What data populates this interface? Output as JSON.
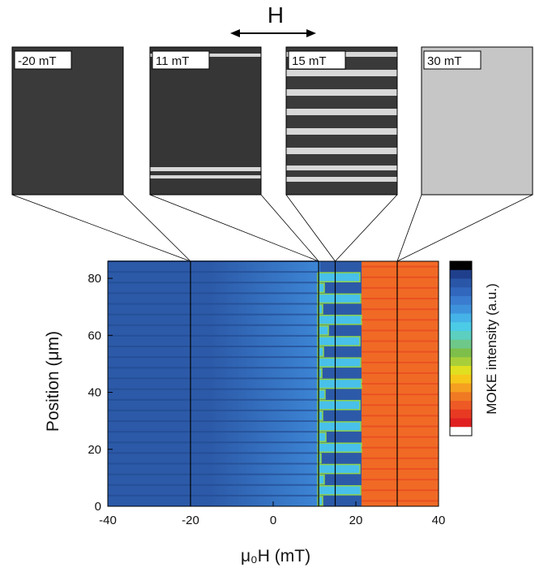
{
  "chart_data": {
    "type": "heatmap",
    "field_label": "H",
    "xlabel": "μ₀H (mT)",
    "ylabel": "Position (μm)",
    "colorbar_label": "MOKE intensity (a.u.)",
    "xlim": [
      -40,
      40
    ],
    "xticks": [
      -40,
      -20,
      0,
      20,
      40
    ],
    "ylim": [
      0,
      86
    ],
    "yticks": [
      0,
      20,
      40,
      60,
      80
    ],
    "markers": [
      {
        "value": -20,
        "label": "-20 mT"
      },
      {
        "value": 11,
        "label": "11 mT"
      },
      {
        "value": 15,
        "label": "15 mT"
      },
      {
        "value": 30,
        "label": "30 mT"
      }
    ],
    "colormap": [
      "#000000",
      "#1f3f8c",
      "#2a56a8",
      "#3167bd",
      "#3a7ccf",
      "#3e92dc",
      "#45b3e8",
      "#4ccbe6",
      "#5ccfc0",
      "#6ec88a",
      "#7dbf4a",
      "#a8cf3a",
      "#e0e020",
      "#f5c81a",
      "#f5a020",
      "#f07a24",
      "#ee5a26",
      "#e83a22",
      "#e02020",
      "#ffffff"
    ]
  }
}
